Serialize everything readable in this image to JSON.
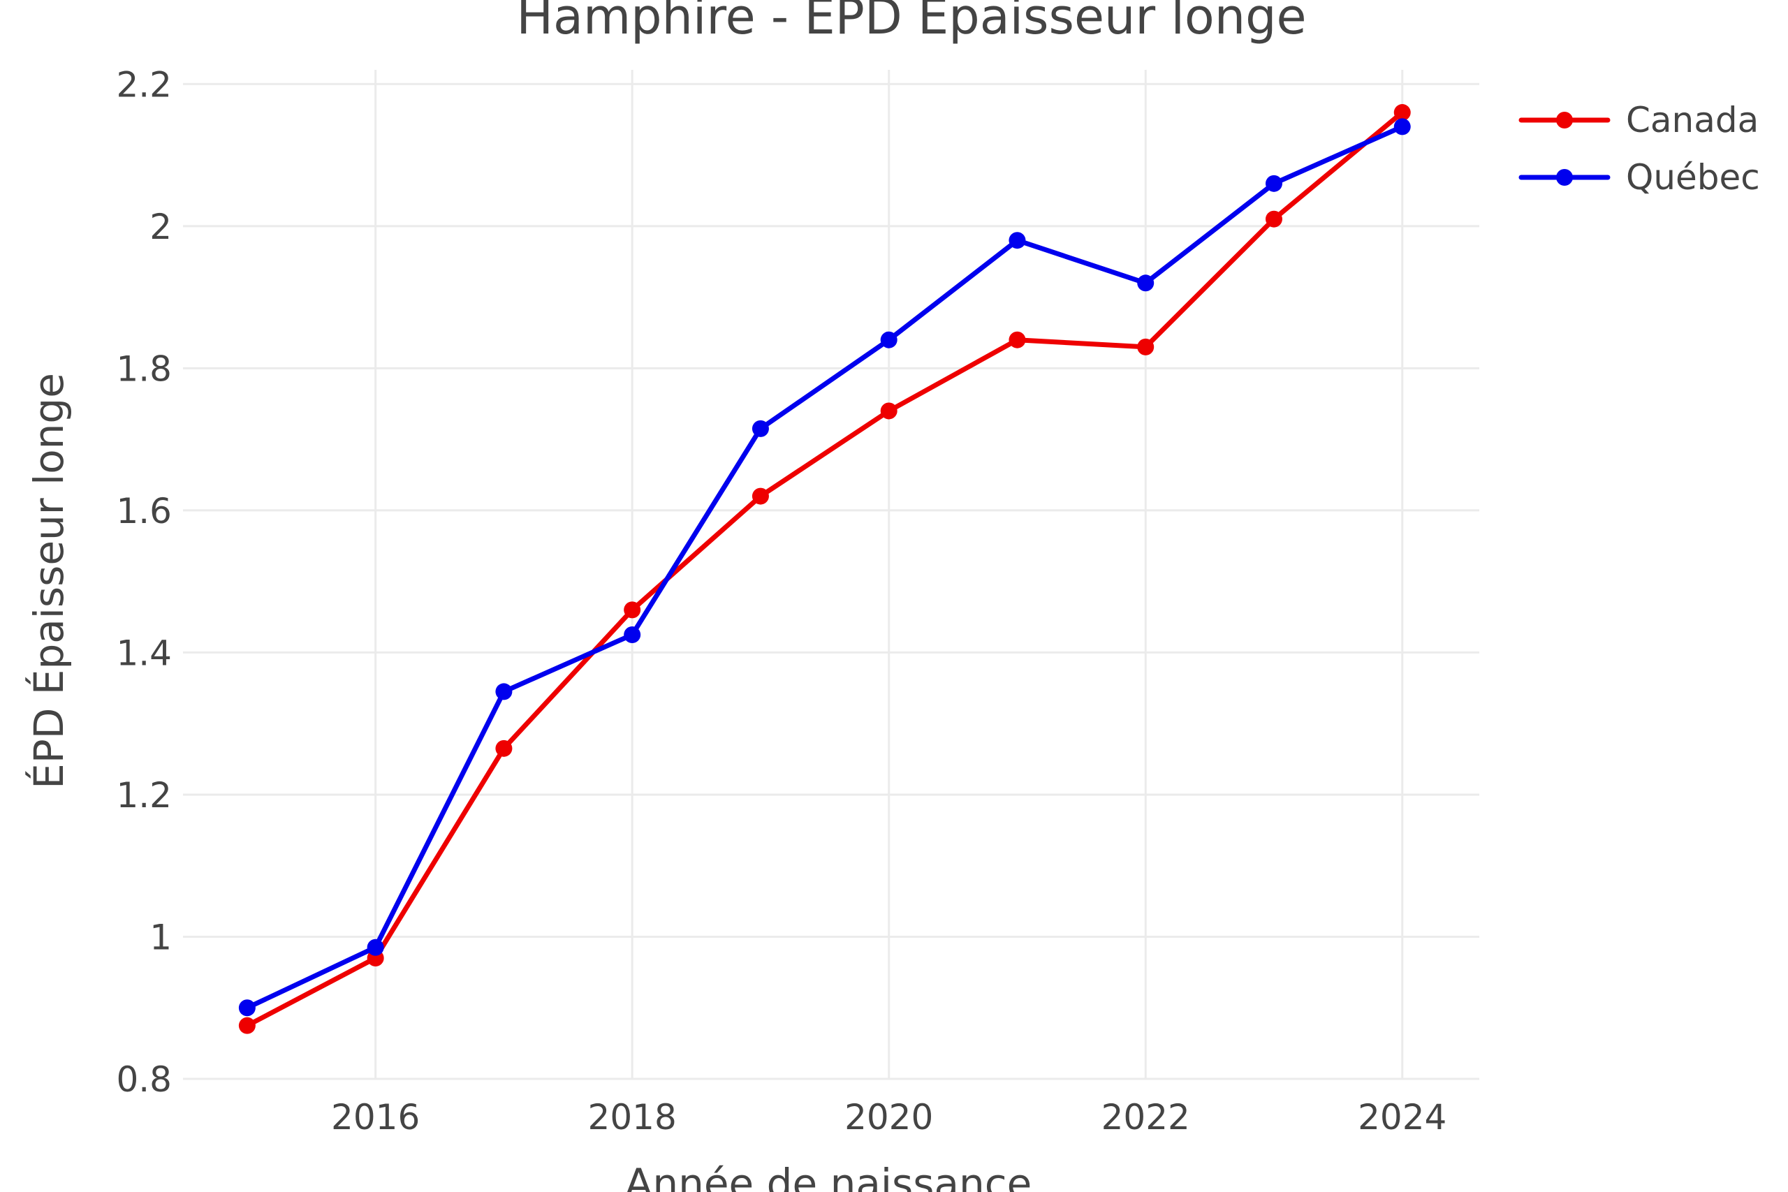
{
  "chart_data": {
    "type": "line",
    "title": "Hamphire - EPD Epaisseur longe",
    "xlabel": "Année de naissance",
    "ylabel": "ÉPD Épaisseur longe",
    "xlim": [
      2014.5,
      2024.6
    ],
    "ylim": [
      0.8,
      2.22
    ],
    "x_ticks": [
      2016,
      2018,
      2020,
      2022,
      2024
    ],
    "x_tick_labels": [
      "2016",
      "2018",
      "2020",
      "2022",
      "2024"
    ],
    "y_ticks": [
      0.8,
      1.0,
      1.2,
      1.4,
      1.6,
      1.8,
      2.0,
      2.2
    ],
    "y_tick_labels": [
      "0.8",
      "1",
      "1.2",
      "1.4",
      "1.6",
      "1.8",
      "2",
      "2.2"
    ],
    "grid": true,
    "legend_position": "top-right",
    "x": [
      2015,
      2016,
      2017,
      2018,
      2019,
      2020,
      2021,
      2022,
      2023,
      2024
    ],
    "series": [
      {
        "name": "Canada",
        "color": "#ee0000",
        "values": [
          0.875,
          0.97,
          1.265,
          1.46,
          1.62,
          1.74,
          1.84,
          1.83,
          2.01,
          2.16
        ]
      },
      {
        "name": "Québec",
        "color": "#0000ee",
        "values": [
          0.9,
          0.985,
          1.345,
          1.425,
          1.715,
          1.84,
          1.98,
          1.92,
          2.06,
          2.14
        ]
      }
    ]
  }
}
